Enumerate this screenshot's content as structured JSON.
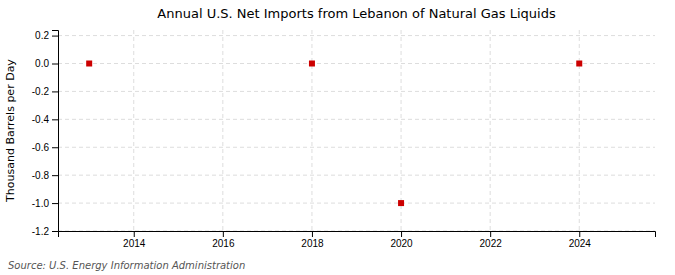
{
  "chart_data": {
    "type": "scatter",
    "title": "Annual U.S. Net Imports from Lebanon of Natural Gas Liquids",
    "y_label": "Thousand Barrels per Day",
    "annotations": [
      "Source: U.S. Energy Information Administration"
    ],
    "x": [
      2013,
      2018,
      2020,
      2024
    ],
    "values": [
      0,
      0,
      -1,
      0
    ],
    "color": "#cc0000",
    "marker": "square",
    "xlim": [
      2012.3,
      2025.7
    ],
    "ylim": [
      -1.2,
      0.24
    ],
    "xticks": [
      2014,
      2016,
      2018,
      2020,
      2022,
      2024
    ],
    "yticks": [
      0.2,
      {
        "value": 0.0,
        "label": "0.0"
      },
      -0.2,
      -0.4,
      -0.6,
      -0.8,
      {
        "value": -1.0,
        "label": "-1.0"
      },
      -1.2
    ],
    "grid": true
  }
}
